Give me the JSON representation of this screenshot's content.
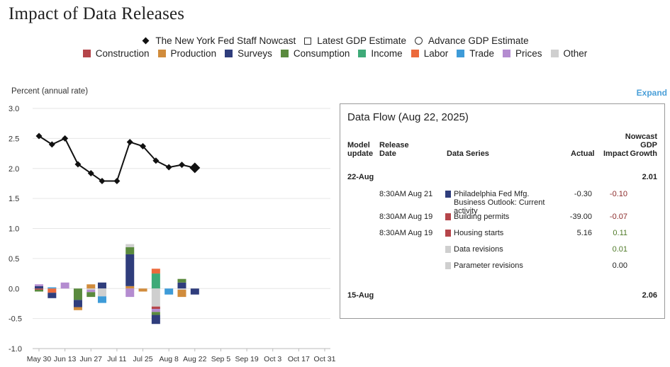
{
  "title": "Impact of Data Releases",
  "legend_markers": [
    {
      "label": "The New York Fed Staff Nowcast",
      "icon": "diamond-icon"
    },
    {
      "label": "Latest GDP Estimate",
      "icon": "open-square-icon"
    },
    {
      "label": "Advance GDP Estimate",
      "icon": "open-circle-icon"
    }
  ],
  "categories_legend": [
    {
      "label": "Construction",
      "color": "#b5454a"
    },
    {
      "label": "Production",
      "color": "#d18c3c"
    },
    {
      "label": "Surveys",
      "color": "#2f3d7c"
    },
    {
      "label": "Consumption",
      "color": "#5a8a3e"
    },
    {
      "label": "Income",
      "color": "#3eaa78"
    },
    {
      "label": "Labor",
      "color": "#ec6a3c"
    },
    {
      "label": "Trade",
      "color": "#3e9bd8"
    },
    {
      "label": "Prices",
      "color": "#b48cd0"
    },
    {
      "label": "Other",
      "color": "#cfcfcf"
    }
  ],
  "expand_label": "Expand",
  "chart_data": {
    "type": "line+stacked-bar",
    "ylabel": "Percent (annual rate)",
    "ylim": [
      -1.0,
      3.0
    ],
    "yticks": [
      "3.0",
      "2.5",
      "2.0",
      "1.5",
      "1.0",
      "0.5",
      "0.0",
      "-0.5",
      "-1.0"
    ],
    "xtick_labels": [
      "May 30",
      "Jun 13",
      "Jun 27",
      "Jul 11",
      "Jul 25",
      "Aug 8",
      "Aug 22",
      "Sep 5",
      "Sep 19",
      "Oct 3",
      "Oct 17",
      "Oct 31"
    ],
    "grid": true,
    "nowcast": {
      "name": "The New York Fed Staff Nowcast",
      "x": [
        "May 30",
        "Jun 6",
        "Jun 13",
        "Jun 20",
        "Jun 27",
        "Jul 3",
        "Jul 11",
        "Jul 18",
        "Jul 25",
        "Aug 1",
        "Aug 8",
        "Aug 15",
        "Aug 22"
      ],
      "y": [
        2.54,
        2.4,
        2.5,
        2.07,
        1.92,
        1.79,
        1.79,
        2.44,
        2.37,
        2.13,
        2.02,
        2.06,
        2.01
      ]
    },
    "impacts": [
      {
        "x": "May 30",
        "parts": [
          {
            "cat": "Surveys",
            "value": 0.04
          },
          {
            "cat": "Prices",
            "value": 0.03
          },
          {
            "cat": "Construction",
            "value": -0.02
          },
          {
            "cat": "Consumption",
            "value": -0.03
          }
        ]
      },
      {
        "x": "Jun 6",
        "parts": [
          {
            "cat": "Trade",
            "value": 0.02
          },
          {
            "cat": "Labor",
            "value": -0.07
          },
          {
            "cat": "Surveys",
            "value": -0.09
          }
        ]
      },
      {
        "x": "Jun 13",
        "parts": [
          {
            "cat": "Prices",
            "value": 0.1
          }
        ]
      },
      {
        "x": "Jun 20",
        "parts": [
          {
            "cat": "Consumption",
            "value": -0.19
          },
          {
            "cat": "Surveys",
            "value": -0.12
          },
          {
            "cat": "Production",
            "value": -0.05
          }
        ]
      },
      {
        "x": "Jun 27",
        "parts": [
          {
            "cat": "Production",
            "value": 0.07
          },
          {
            "cat": "Other",
            "value": -0.02
          },
          {
            "cat": "Prices",
            "value": -0.04
          },
          {
            "cat": "Consumption",
            "value": -0.08
          }
        ]
      },
      {
        "x": "Jul 3",
        "parts": [
          {
            "cat": "Surveys",
            "value": 0.1
          },
          {
            "cat": "Other",
            "value": -0.13
          },
          {
            "cat": "Trade",
            "value": -0.11
          }
        ]
      },
      {
        "x": "Jul 18",
        "parts": [
          {
            "cat": "Production",
            "value": 0.04
          },
          {
            "cat": "Surveys",
            "value": 0.53
          },
          {
            "cat": "Consumption",
            "value": 0.12
          },
          {
            "cat": "Other",
            "value": 0.05
          },
          {
            "cat": "Prices",
            "value": -0.14
          }
        ]
      },
      {
        "x": "Jul 25",
        "parts": [
          {
            "cat": "Production",
            "value": -0.05
          }
        ]
      },
      {
        "x": "Aug 1",
        "parts": [
          {
            "cat": "Income",
            "value": 0.25
          },
          {
            "cat": "Labor",
            "value": 0.08
          },
          {
            "cat": "Other",
            "value": -0.3
          },
          {
            "cat": "Construction",
            "value": -0.04
          },
          {
            "cat": "Prices",
            "value": -0.05
          },
          {
            "cat": "Consumption",
            "value": -0.05
          },
          {
            "cat": "Surveys",
            "value": -0.15
          }
        ]
      },
      {
        "x": "Aug 8",
        "parts": [
          {
            "cat": "Trade",
            "value": -0.1
          }
        ]
      },
      {
        "x": "Aug 15",
        "parts": [
          {
            "cat": "Surveys",
            "value": 0.1
          },
          {
            "cat": "Consumption",
            "value": 0.06
          },
          {
            "cat": "Other",
            "value": -0.02
          },
          {
            "cat": "Production",
            "value": -0.12
          }
        ]
      },
      {
        "x": "Aug 22",
        "parts": [
          {
            "cat": "Surveys",
            "value": -0.1
          }
        ]
      }
    ]
  },
  "data_flow": {
    "title": "Data Flow (Aug 22, 2025)",
    "headers": {
      "model_update": "Model update",
      "release_date": "Release Date",
      "data_series": "Data Series",
      "actual": "Actual",
      "impact": "Impact",
      "nowcast_growth": "Nowcast GDP Growth"
    },
    "groups": [
      {
        "date": "22-Aug",
        "growth": "2.01",
        "rows": [
          {
            "release": "8:30AM Aug 21",
            "series": "Philadelphia Fed Mfg. Business Outlook: Current activity",
            "actual": "-0.30",
            "impact": "-0.10",
            "color": "#2f3d7c",
            "sign": "neg"
          },
          {
            "release": "8:30AM Aug 19",
            "series": "Building permits",
            "actual": "-39.00",
            "impact": "-0.07",
            "color": "#b5454a",
            "sign": "neg"
          },
          {
            "release": "8:30AM Aug 19",
            "series": "Housing starts",
            "actual": "5.16",
            "impact": "0.11",
            "color": "#b5454a",
            "sign": "pos"
          },
          {
            "release": "",
            "series": "Data revisions",
            "actual": "",
            "impact": "0.01",
            "color": "#cfcfcf",
            "sign": "pos"
          },
          {
            "release": "",
            "series": "Parameter revisions",
            "actual": "",
            "impact": "0.00",
            "color": "#cfcfcf",
            "sign": "zero"
          }
        ]
      },
      {
        "date": "15-Aug",
        "growth": "2.06",
        "rows": []
      }
    ]
  }
}
